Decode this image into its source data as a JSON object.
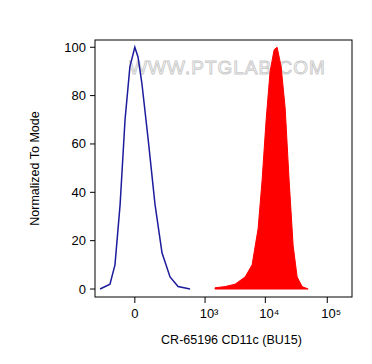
{
  "chart_data": {
    "type": "line",
    "x_label": "CR-65196 CD11c (BU15)",
    "y_label": "Normalized To Mode",
    "annotations": [
      "WWW.PTGLAB.COM"
    ],
    "log": "x",
    "xlim": [
      -270,
      250000
    ],
    "xticks": [
      0,
      {
        "value": 1000,
        "label": "10³"
      },
      {
        "value": 10000,
        "label": "10⁴"
      },
      {
        "value": 100000,
        "label": "10⁵"
      }
    ],
    "ylim": [
      -3.3,
      103
    ],
    "yticks": [
      0,
      20,
      40,
      60,
      80,
      100
    ],
    "series": [
      {
        "type": "line",
        "color": "#1c1c9c",
        "x": [
          -210,
          -121,
          -87,
          -58,
          -35,
          -16,
          0,
          10,
          24,
          51,
          89,
          139,
          215,
          317,
          539
        ],
        "values": [
          0,
          2,
          10,
          35,
          70,
          92,
          100,
          96,
          85,
          62,
          35,
          15,
          5,
          1,
          0
        ]
      },
      {
        "type": "area",
        "color": "#ff0000",
        "x": [
          1484,
          2185,
          3200,
          4690,
          6090,
          7630,
          8860,
          10300,
          11940,
          13890,
          15520,
          18000,
          20910,
          24240,
          28160,
          32660,
          39300,
          49140
        ],
        "values": [
          0.5,
          1,
          2,
          5,
          10,
          25,
          45,
          70,
          90,
          99,
          100,
          92,
          75,
          45,
          18,
          5,
          1,
          0
        ]
      }
    ]
  }
}
